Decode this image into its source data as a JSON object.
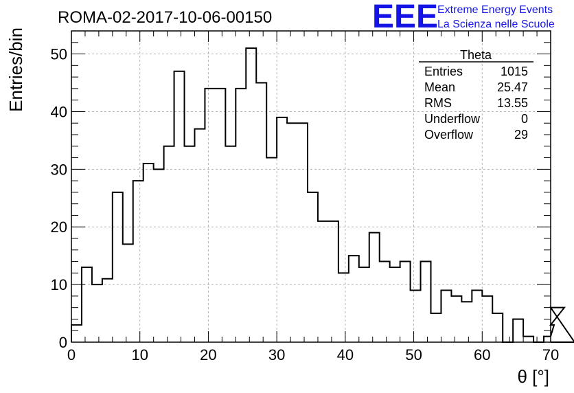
{
  "header": {
    "title": "ROMA-02-2017-10-06-00150",
    "logo_mark": "EEE",
    "logo_line1": "Extreme Energy Events",
    "logo_line2": "La Scienza nelle Scuole",
    "logo_color": "#1414e6"
  },
  "stats": {
    "title": "Theta",
    "rows": [
      {
        "label": "Entries",
        "value": "1015"
      },
      {
        "label": "Mean",
        "value": "25.47"
      },
      {
        "label": "RMS",
        "value": "13.55"
      },
      {
        "label": "Underflow",
        "value": "0"
      },
      {
        "label": "Overflow",
        "value": "29"
      }
    ]
  },
  "chart_data": {
    "type": "histogram",
    "xlabel": "θ [°]",
    "ylabel": "Entries/bin",
    "xlim": [
      0,
      70
    ],
    "ylim": [
      0,
      54
    ],
    "grid": true,
    "bin_width": 1.5,
    "bin_start": 0,
    "xticks": [
      0,
      10,
      20,
      30,
      40,
      50,
      60,
      70
    ],
    "yticks": [
      0,
      10,
      20,
      30,
      40,
      50
    ],
    "values": [
      3,
      13,
      10,
      11,
      26,
      17,
      28,
      31,
      30,
      34,
      47,
      34,
      37,
      44,
      44,
      34,
      44,
      51,
      45,
      32,
      39,
      38,
      38,
      26,
      21,
      21,
      12,
      15,
      13,
      19,
      14,
      13,
      14,
      9,
      14,
      5,
      9,
      8,
      7,
      9,
      8,
      5,
      0,
      4,
      1,
      0,
      1,
      3,
      6,
      0
    ]
  }
}
